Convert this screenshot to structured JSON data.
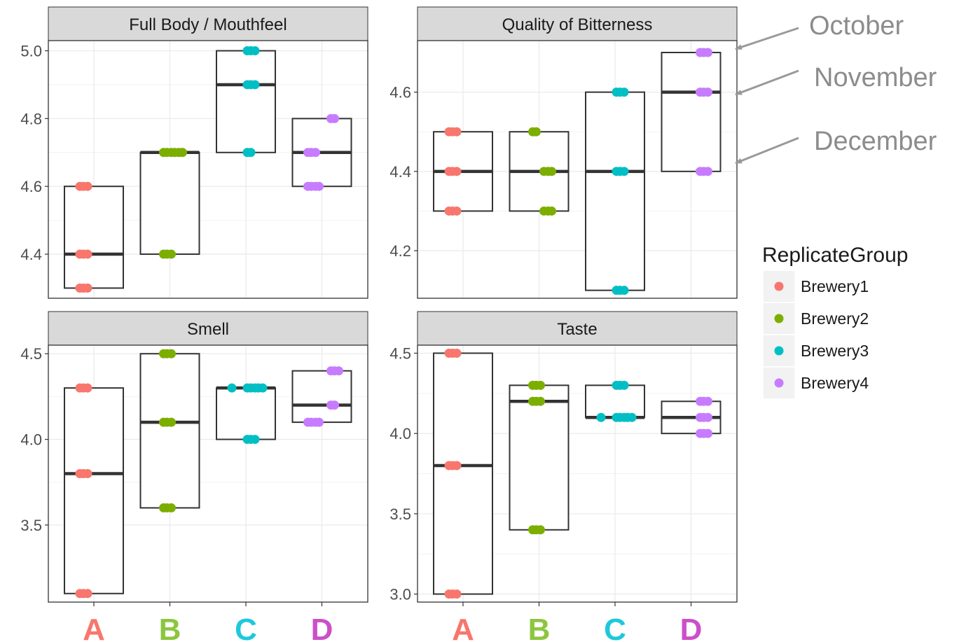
{
  "chart_data": {
    "type": "box",
    "categories": [
      "A",
      "B",
      "C",
      "D"
    ],
    "category_colors": [
      "#f8766d",
      "#8cc63f",
      "#1ec8dc",
      "#cc4fc9"
    ],
    "legend": {
      "title": "ReplicateGroup",
      "position": "right",
      "entries": [
        {
          "name": "Brewery1",
          "color": "#f8766d"
        },
        {
          "name": "Brewery2",
          "color": "#7cae00"
        },
        {
          "name": "Brewery3",
          "color": "#00bfc4"
        },
        {
          "name": "Brewery4",
          "color": "#c77cff"
        }
      ]
    },
    "annotations": [
      "October",
      "November",
      "December"
    ],
    "grid": true,
    "panels": [
      {
        "title": "Full Body / Mouthfeel",
        "ylim": [
          4.27,
          5.03
        ],
        "yticks": [
          4.4,
          4.6,
          4.8,
          5.0
        ],
        "ytick_labels": [
          "4.4",
          "4.6",
          "4.8",
          "5.0"
        ],
        "boxes": [
          {
            "q1": 4.3,
            "median": 4.4,
            "q3": 4.6
          },
          {
            "q1": 4.4,
            "median": 4.7,
            "q3": 4.7
          },
          {
            "q1": 4.7,
            "median": 4.9,
            "q3": 5.0
          },
          {
            "q1": 4.6,
            "median": 4.7,
            "q3": 4.8
          }
        ],
        "points": [
          [
            4.6,
            4.6,
            4.6,
            4.4,
            4.4,
            4.4,
            4.3,
            4.3,
            4.3
          ],
          [
            4.7,
            4.7,
            4.7,
            4.7,
            4.7,
            4.7,
            4.4,
            4.4,
            4.4
          ],
          [
            5.0,
            5.0,
            5.0,
            4.9,
            4.9,
            4.9,
            4.7,
            4.7
          ],
          [
            4.8,
            4.8,
            4.7,
            4.7,
            4.7,
            4.6,
            4.6,
            4.6,
            4.6
          ]
        ]
      },
      {
        "title": "Quality of Bitterness",
        "ylim": [
          4.08,
          4.73
        ],
        "yticks": [
          4.2,
          4.4,
          4.6
        ],
        "ytick_labels": [
          "4.2",
          "4.4",
          "4.6"
        ],
        "boxes": [
          {
            "q1": 4.3,
            "median": 4.4,
            "q3": 4.5
          },
          {
            "q1": 4.3,
            "median": 4.4,
            "q3": 4.5
          },
          {
            "q1": 4.1,
            "median": 4.4,
            "q3": 4.6
          },
          {
            "q1": 4.4,
            "median": 4.6,
            "q3": 4.7
          }
        ],
        "points": [
          [
            4.5,
            4.5,
            4.5,
            4.4,
            4.4,
            4.4,
            4.3,
            4.3,
            4.3
          ],
          [
            4.5,
            4.5,
            4.4,
            4.4,
            4.4,
            4.3,
            4.3,
            4.3
          ],
          [
            4.6,
            4.6,
            4.6,
            4.4,
            4.4,
            4.4,
            4.1,
            4.1,
            4.1
          ],
          [
            4.7,
            4.7,
            4.7,
            4.6,
            4.6,
            4.6,
            4.4,
            4.4,
            4.4
          ]
        ]
      },
      {
        "title": "Smell",
        "ylim": [
          3.05,
          4.55
        ],
        "yticks": [
          3.5,
          4.0,
          4.5
        ],
        "ytick_labels": [
          "3.5",
          "4.0",
          "4.5"
        ],
        "boxes": [
          {
            "q1": 3.1,
            "median": 3.8,
            "q3": 4.3
          },
          {
            "q1": 3.6,
            "median": 4.1,
            "q3": 4.5
          },
          {
            "q1": 4.0,
            "median": 4.3,
            "q3": 4.3
          },
          {
            "q1": 4.1,
            "median": 4.2,
            "q3": 4.4
          }
        ],
        "points": [
          [
            4.3,
            4.3,
            4.3,
            3.8,
            3.8,
            3.8,
            3.1,
            3.1,
            3.1
          ],
          [
            4.5,
            4.5,
            4.5,
            4.1,
            4.1,
            4.1,
            3.6,
            3.6,
            3.6
          ],
          [
            4.3,
            4.3,
            4.3,
            4.3,
            4.3,
            4.3,
            4.0,
            4.0,
            4.0
          ],
          [
            4.4,
            4.4,
            4.4,
            4.2,
            4.2,
            4.1,
            4.1,
            4.1,
            4.1
          ]
        ]
      },
      {
        "title": "Taste",
        "ylim": [
          2.95,
          4.55
        ],
        "yticks": [
          3.0,
          3.5,
          4.0,
          4.5
        ],
        "ytick_labels": [
          "3.0",
          "3.5",
          "4.0",
          "4.5"
        ],
        "boxes": [
          {
            "q1": 3.0,
            "median": 3.8,
            "q3": 4.5
          },
          {
            "q1": 3.4,
            "median": 4.2,
            "q3": 4.3
          },
          {
            "q1": 4.1,
            "median": 4.1,
            "q3": 4.3
          },
          {
            "q1": 4.0,
            "median": 4.1,
            "q3": 4.2
          }
        ],
        "points": [
          [
            4.5,
            4.5,
            4.5,
            3.8,
            3.8,
            3.8,
            3.0,
            3.0,
            3.0
          ],
          [
            4.3,
            4.3,
            4.3,
            4.2,
            4.2,
            4.2,
            3.4,
            3.4,
            3.4
          ],
          [
            4.3,
            4.3,
            4.3,
            4.1,
            4.1,
            4.1,
            4.1,
            4.1,
            4.1
          ],
          [
            4.2,
            4.2,
            4.2,
            4.1,
            4.1,
            4.1,
            4.0,
            4.0,
            4.0
          ]
        ]
      }
    ]
  }
}
